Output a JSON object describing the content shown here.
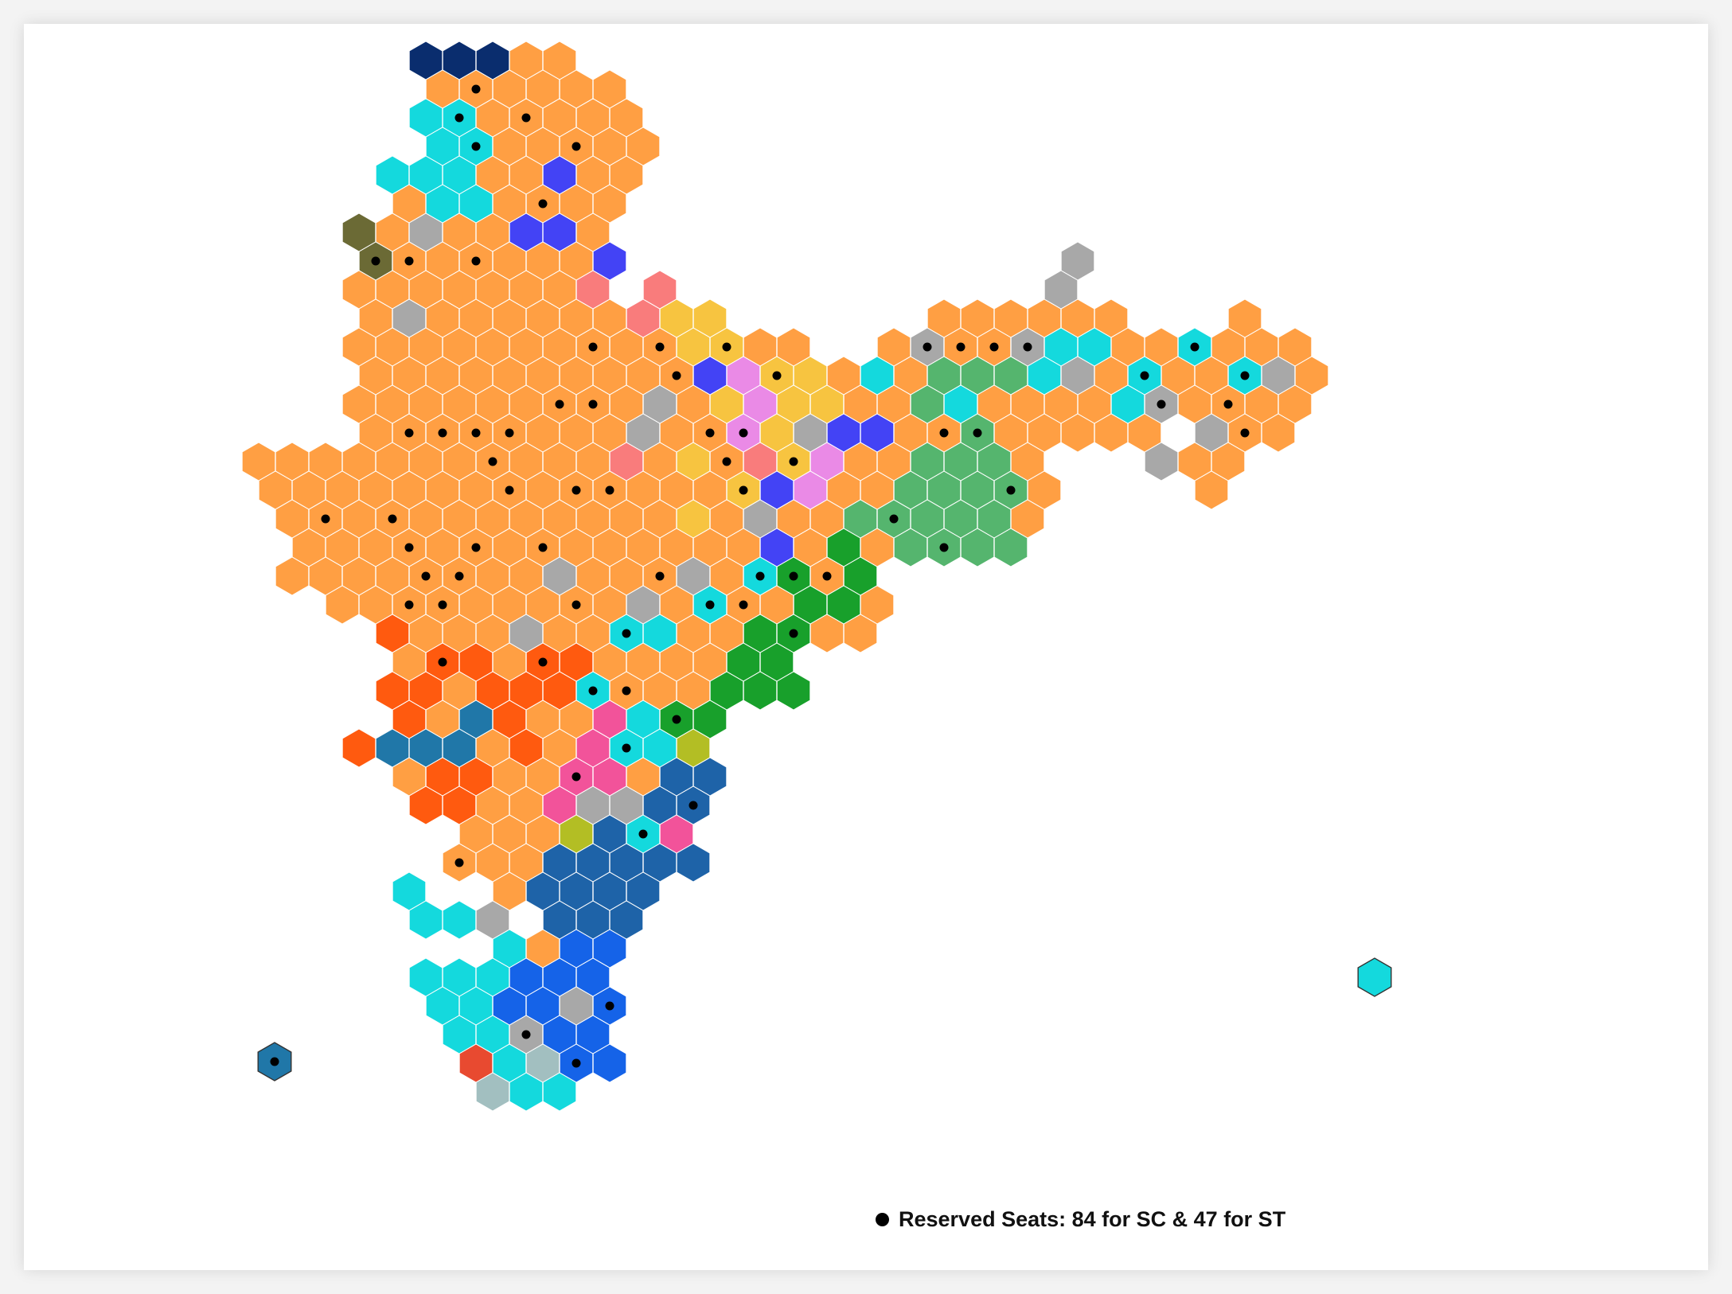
{
  "legend": {
    "reserved_label": "Reserved Seats: 84 for SC & 47 for ST"
  },
  "colors": {
    "background": "#ffffff",
    "frame": "#f3f3f3",
    "bjp": "#FF9F43",
    "cyan": "#14D9DD",
    "blue": "#1563E8",
    "steelblue": "#1E63A8",
    "green": "#55B56E",
    "darkgreen": "#18A02B",
    "pink": "#F2539A",
    "orangered": "#FF5A0F",
    "indigo": "#4343F5",
    "navy": "#0A2D6E",
    "gray": "#A8A8A8",
    "salmon": "#F97C7C",
    "yellow": "#F7C440",
    "violet": "#EA8AE6",
    "olive": "#6B6A35",
    "teal": "#2077A8",
    "yellowgreen": "#B3BE24",
    "red": "#E84A30",
    "seagray": "#A2BFC0",
    "reserved_dot": "#000000"
  },
  "map_data": {
    "type": "hexmap",
    "total_reserved": {
      "SC": 84,
      "ST": 47
    }
  }
}
